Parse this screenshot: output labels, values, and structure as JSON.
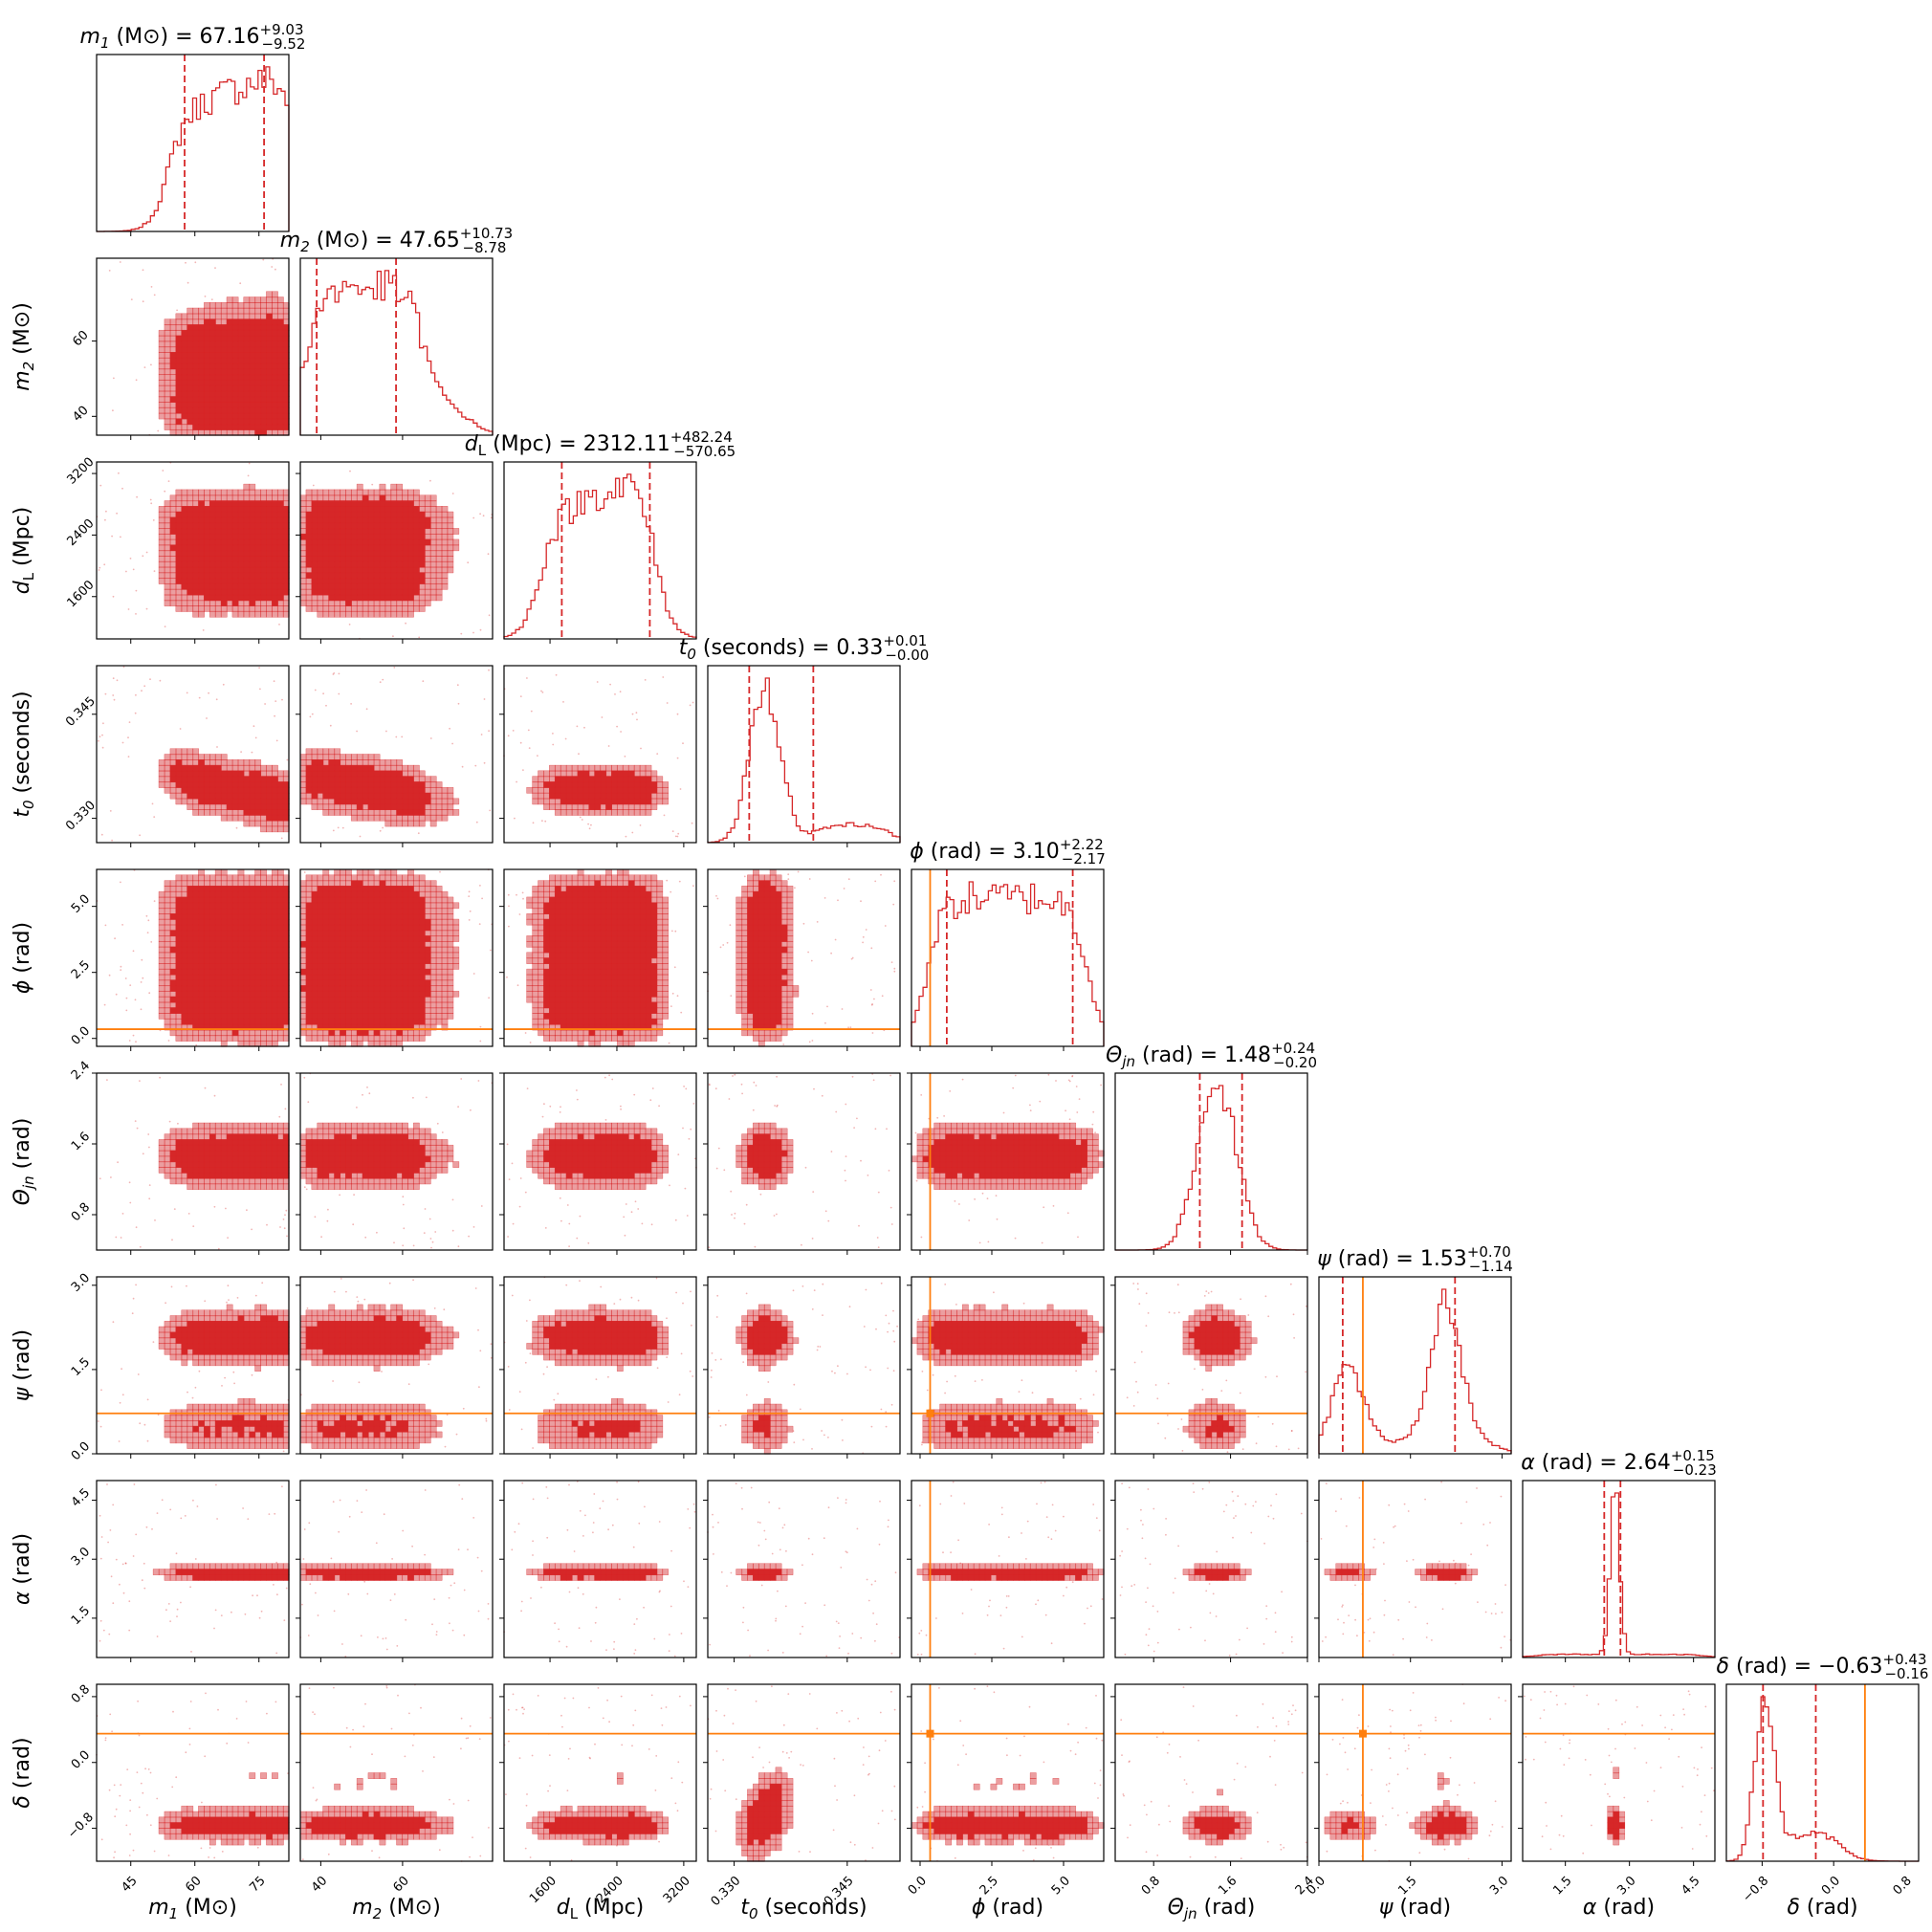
{
  "chart_data": {
    "type": "corner",
    "colors": {
      "posterior": "#d62728",
      "injection": "#ff7f0e",
      "frame": "#000000",
      "background": "#ffffff"
    },
    "parameters": [
      {
        "key": "m1",
        "symbol": "m",
        "subscript": "1",
        "unit": "(M⊙)",
        "range": [
          37,
          82
        ],
        "ticks": [
          45,
          60,
          75
        ],
        "tick_labels": [
          "45",
          "60",
          "75"
        ],
        "title": {
          "median": "67.16",
          "plus": "+9.03",
          "minus": "−9.52"
        },
        "quantiles": [
          57.6,
          76.2
        ],
        "injection": null,
        "shape": "m1"
      },
      {
        "key": "m2",
        "symbol": "m",
        "subscript": "2",
        "unit": "(M⊙)",
        "range": [
          35,
          82
        ],
        "ticks": [
          40,
          60
        ],
        "tick_labels": [
          "40",
          "60"
        ],
        "title": {
          "median": "47.65",
          "plus": "+10.73",
          "minus": "−8.78"
        },
        "quantiles": [
          39,
          58.4
        ],
        "injection": null,
        "shape": "m2"
      },
      {
        "key": "dL",
        "symbol": "d",
        "subscript": "L",
        "unit": "(Mpc)",
        "range": [
          1050,
          3350
        ],
        "ticks": [
          1600,
          2400,
          3200
        ],
        "tick_labels": [
          "1600",
          "2400",
          "3200"
        ],
        "title": {
          "median": "2312.11",
          "plus": "+482.24",
          "minus": "−570.65"
        },
        "quantiles": [
          1741,
          2794
        ],
        "injection": null,
        "shape": "dL"
      },
      {
        "key": "t0",
        "symbol": "t",
        "subscript": "0",
        "unit": "(seconds)",
        "range": [
          0.3265,
          0.352
        ],
        "ticks": [
          0.33,
          0.345
        ],
        "tick_labels": [
          "0.330",
          "0.345"
        ],
        "title": {
          "median": "0.33",
          "plus": "+0.01",
          "minus": "−0.00"
        },
        "quantiles": [
          0.332,
          0.3405
        ],
        "injection": null,
        "shape": "t0"
      },
      {
        "key": "phi",
        "symbol": "ϕ",
        "subscript": "",
        "unit": "(rad)",
        "range": [
          -0.3,
          6.4
        ],
        "ticks": [
          0.0,
          2.5,
          5.0
        ],
        "tick_labels": [
          "0.0",
          "2.5",
          "5.0"
        ],
        "title": {
          "median": "3.10",
          "plus": "+2.22",
          "minus": "−2.17"
        },
        "quantiles": [
          0.93,
          5.32
        ],
        "injection": 0.35,
        "shape": "flat"
      },
      {
        "key": "theta",
        "symbol": "Θ",
        "subscript": "jn",
        "unit": "(rad)",
        "range": [
          0.4,
          2.4
        ],
        "ticks": [
          0.8,
          1.6,
          2.4
        ],
        "tick_labels": [
          "0.8",
          "1.6",
          "2.4"
        ],
        "title": {
          "median": "1.48",
          "plus": "+0.24",
          "minus": "−0.20"
        },
        "quantiles": [
          1.28,
          1.72
        ],
        "injection": null,
        "shape": "theta"
      },
      {
        "key": "psi",
        "symbol": "ψ",
        "subscript": "",
        "unit": "(rad)",
        "range": [
          0.0,
          3.15
        ],
        "ticks": [
          0.0,
          1.5,
          3.0
        ],
        "tick_labels": [
          "0.0",
          "1.5",
          "3.0"
        ],
        "title": {
          "median": "1.53",
          "plus": "+0.70",
          "minus": "−1.14"
        },
        "quantiles": [
          0.39,
          2.23
        ],
        "injection": 0.72,
        "shape": "psi"
      },
      {
        "key": "alpha",
        "symbol": "α",
        "subscript": "",
        "unit": "(rad)",
        "range": [
          0.5,
          5.0
        ],
        "ticks": [
          1.5,
          3.0,
          4.5
        ],
        "tick_labels": [
          "1.5",
          "3.0",
          "4.5"
        ],
        "title": {
          "median": "2.64",
          "plus": "+0.15",
          "minus": "−0.23"
        },
        "quantiles": [
          2.41,
          2.79
        ],
        "injection": null,
        "shape": "alpha"
      },
      {
        "key": "delta",
        "symbol": "δ",
        "subscript": "",
        "unit": "(rad)",
        "range": [
          -1.2,
          0.95
        ],
        "ticks": [
          -0.8,
          0.0,
          0.8
        ],
        "tick_labels": [
          "−0.8",
          "0.0",
          "0.8"
        ],
        "title": {
          "median": "−0.63",
          "plus": "+0.43",
          "minus": "−0.16"
        },
        "quantiles": [
          -0.79,
          -0.2
        ],
        "injection": 0.35,
        "shape": "delta"
      }
    ]
  }
}
